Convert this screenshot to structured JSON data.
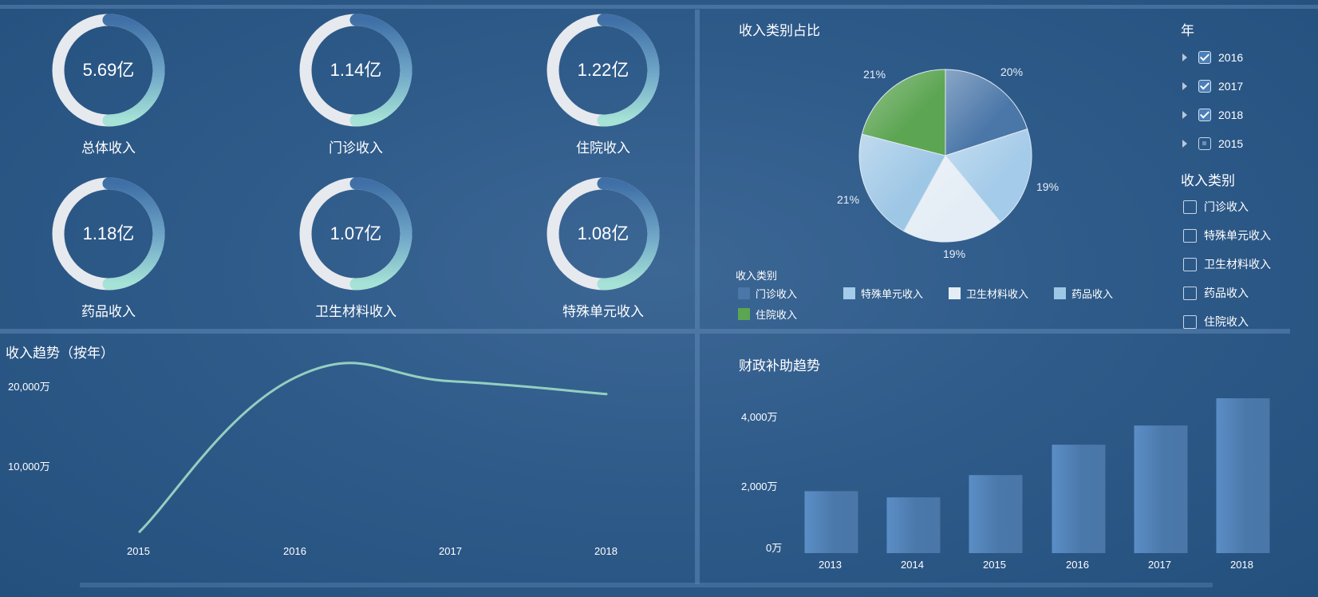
{
  "kpis": [
    {
      "value": "5.69亿",
      "label": "总体收入"
    },
    {
      "value": "1.14亿",
      "label": "门诊收入"
    },
    {
      "value": "1.22亿",
      "label": "住院收入"
    },
    {
      "value": "1.18亿",
      "label": "药品收入"
    },
    {
      "value": "1.07亿",
      "label": "卫生材料收入"
    },
    {
      "value": "1.08亿",
      "label": "特殊单元收入"
    }
  ],
  "slicers": {
    "year_title": "年",
    "years": [
      {
        "label": "2016",
        "state": "checked"
      },
      {
        "label": "2017",
        "state": "checked"
      },
      {
        "label": "2018",
        "state": "checked"
      },
      {
        "label": "2015",
        "state": "partial"
      }
    ],
    "category_title": "收入类别",
    "categories": [
      "门诊收入",
      "特殊单元收入",
      "卫生材料收入",
      "药品收入",
      "住院收入"
    ]
  },
  "colors": {
    "outpatient": "#4a76a8",
    "special": "#a4cbe9",
    "material": "#e4edf5",
    "drug": "#9ec7e6",
    "inpatient": "#5ca552",
    "line": "#94cfc0",
    "bar": "#4a78aa"
  },
  "chart_data": [
    {
      "type": "pie",
      "title": "收入类别占比",
      "legend_title": "收入类别",
      "legend_position": "bottom",
      "slices": [
        {
          "name": "门诊收入",
          "value": 20,
          "label": "20%"
        },
        {
          "name": "特殊单元收入",
          "value": 19,
          "label": "19%"
        },
        {
          "name": "卫生材料收入",
          "value": 19,
          "label": "19%"
        },
        {
          "name": "药品收入",
          "value": 21,
          "label": "21%"
        },
        {
          "name": "住院收入",
          "value": 21,
          "label": "21%"
        }
      ]
    },
    {
      "type": "line",
      "title": "收入趋势（按年）",
      "x": [
        "2015",
        "2016",
        "2017",
        "2018"
      ],
      "values": [
        2500,
        19300,
        18900,
        17500
      ],
      "ylim": [
        0,
        22500
      ],
      "yticks": [
        {
          "v": 10000,
          "label": "10,000万"
        },
        {
          "v": 20000,
          "label": "20,000万"
        }
      ],
      "grid": false
    },
    {
      "type": "bar",
      "title": "财政补助趋势",
      "categories": [
        "2013",
        "2014",
        "2015",
        "2016",
        "2017",
        "2018"
      ],
      "values": [
        2000,
        1800,
        2520,
        3500,
        4120,
        5000
      ],
      "ylim": [
        0,
        5000
      ],
      "yticks": [
        {
          "v": 0,
          "label": "0万"
        },
        {
          "v": 2000,
          "label": "2,000万"
        },
        {
          "v": 4000,
          "label": "4,000万"
        }
      ],
      "grid": false
    }
  ]
}
